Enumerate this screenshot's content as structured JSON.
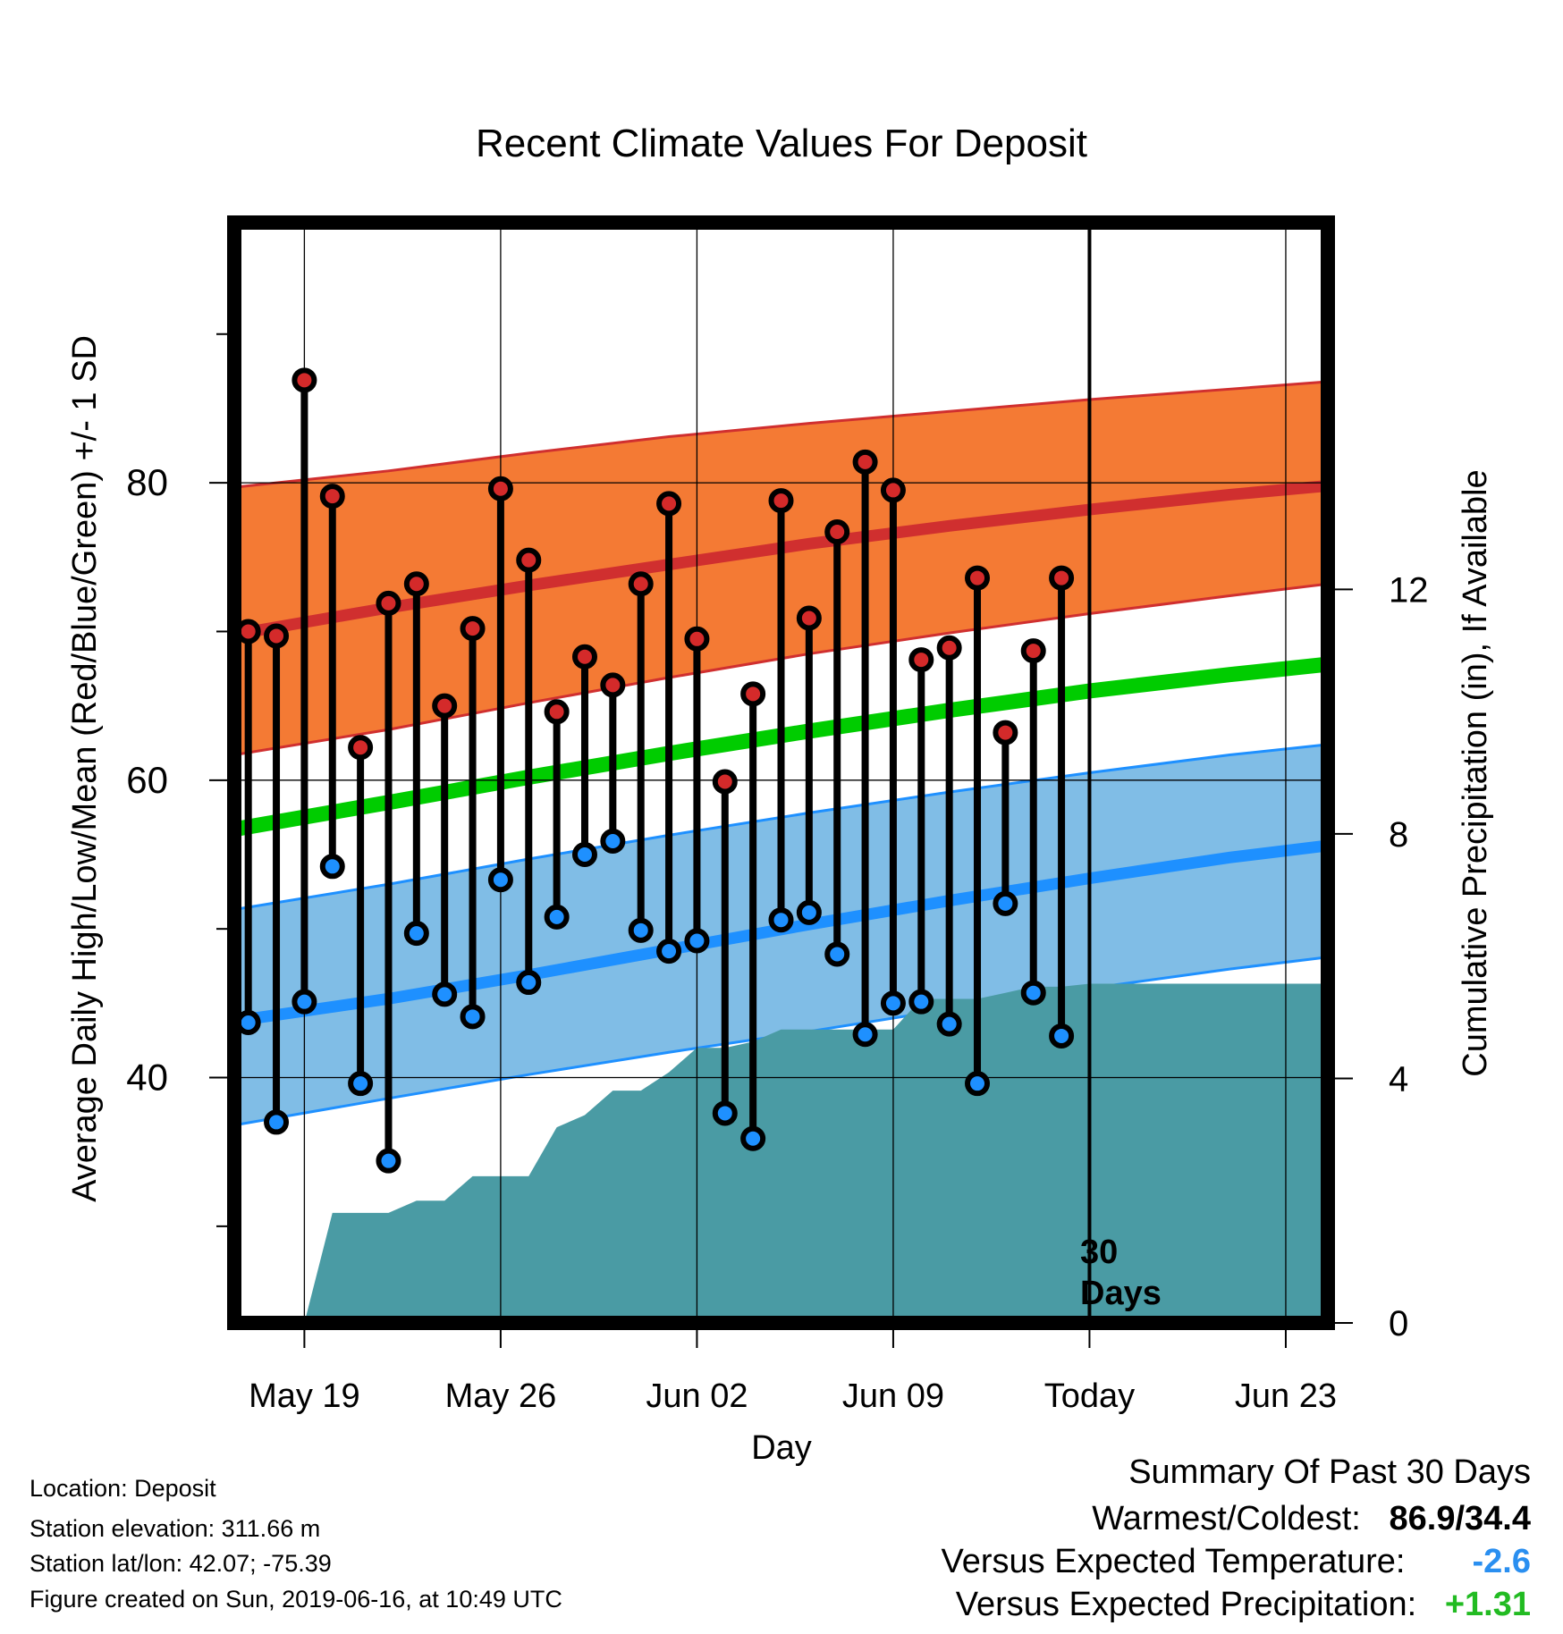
{
  "chart_data": {
    "type": "line",
    "title": "Recent Climate Values For Deposit",
    "xlabel": "Day",
    "ylabel": "Average Daily High/Low/Mean (Red/Blue/Green) +/- 1 SD",
    "y2label": "Cumulative Precipitation (in), If Available",
    "x_tick_labels": [
      "May 19",
      "May 26",
      "Jun 02",
      "Jun 09",
      "Today",
      "Jun 23"
    ],
    "x_tick_days": [
      2,
      9,
      16,
      23,
      30,
      37
    ],
    "xlim": [
      -0.5,
      38.5
    ],
    "ylim": [
      23.5,
      97.5
    ],
    "y_ticks": [
      40,
      60,
      80
    ],
    "y_minor_ticks": [
      30,
      50,
      70,
      90
    ],
    "y2lim": [
      0,
      18
    ],
    "y2_ticks": [
      0,
      4,
      8,
      12
    ],
    "today_day": 30,
    "today_label_line1": "30",
    "today_label_line2": "Days",
    "normals": {
      "day": [
        -0.5,
        5,
        10,
        15,
        20,
        25,
        30,
        35,
        38.5
      ],
      "high_mean": [
        69.8,
        71.6,
        73.1,
        74.5,
        75.9,
        77.1,
        78.2,
        79.2,
        79.8
      ],
      "high_upper": [
        79.7,
        80.8,
        82.0,
        83.1,
        84.0,
        84.8,
        85.6,
        86.3,
        86.8
      ],
      "high_lower": [
        61.7,
        63.4,
        65.2,
        66.9,
        68.5,
        69.9,
        71.2,
        72.4,
        73.2
      ],
      "avg_mean": [
        56.7,
        58.5,
        60.2,
        61.8,
        63.3,
        64.7,
        66.0,
        67.1,
        67.8
      ],
      "low_mean": [
        43.8,
        45.3,
        46.9,
        48.6,
        50.3,
        51.9,
        53.4,
        54.8,
        55.6
      ],
      "low_upper": [
        51.3,
        53.0,
        54.7,
        56.3,
        57.8,
        59.2,
        60.5,
        61.7,
        62.4
      ],
      "low_lower": [
        36.8,
        38.6,
        40.2,
        41.7,
        43.1,
        44.6,
        46.0,
        47.3,
        48.1
      ]
    },
    "series": [
      {
        "name": "High",
        "color": "#d42a2a",
        "day": [
          0,
          1,
          2,
          3,
          4,
          5,
          6,
          7,
          8,
          9,
          10,
          11,
          12,
          13,
          14,
          15,
          16,
          17,
          18,
          19,
          20,
          21,
          22,
          23,
          24,
          25,
          26,
          27,
          28,
          29
        ],
        "values": [
          70.0,
          69.7,
          86.9,
          79.1,
          62.2,
          71.9,
          73.2,
          65.0,
          70.2,
          79.6,
          74.8,
          64.6,
          68.3,
          66.4,
          73.2,
          78.6,
          69.5,
          59.9,
          65.8,
          78.8,
          70.9,
          76.7,
          81.4,
          79.5,
          68.1,
          68.9,
          73.6,
          63.2,
          68.7,
          73.6
        ]
      },
      {
        "name": "Low",
        "color": "#1e90ff",
        "day": [
          0,
          1,
          2,
          3,
          4,
          5,
          6,
          7,
          8,
          9,
          10,
          11,
          12,
          13,
          14,
          15,
          16,
          17,
          18,
          19,
          20,
          21,
          22,
          23,
          24,
          25,
          26,
          27,
          28,
          29
        ],
        "values": [
          43.7,
          37.0,
          45.1,
          54.2,
          39.6,
          34.4,
          49.7,
          45.6,
          44.1,
          53.3,
          46.4,
          50.8,
          55.0,
          55.9,
          49.9,
          48.5,
          49.2,
          37.6,
          35.9,
          50.6,
          51.1,
          48.3,
          42.9,
          45.0,
          45.1,
          43.6,
          39.6,
          51.7,
          45.7,
          42.8
        ]
      }
    ],
    "precipitation": {
      "name": "Cumulative Precipitation",
      "color": "#4a9ba4",
      "day": [
        2,
        3,
        4,
        5,
        6,
        7,
        8,
        9,
        10,
        11,
        12,
        13,
        14,
        15,
        16,
        17,
        18,
        19,
        20,
        21,
        22,
        23,
        24,
        25,
        26,
        27,
        28,
        29,
        30,
        38.5
      ],
      "values": [
        0,
        1.8,
        1.8,
        1.8,
        2.0,
        2.0,
        2.4,
        2.4,
        2.4,
        3.2,
        3.4,
        3.8,
        3.8,
        4.1,
        4.5,
        4.5,
        4.6,
        4.8,
        4.8,
        4.8,
        4.8,
        4.8,
        5.3,
        5.3,
        5.3,
        5.4,
        5.5,
        5.5,
        5.55,
        5.55
      ]
    },
    "colors": {
      "high_band": "#f47a34",
      "high_line": "#d02f2f",
      "mean_line": "#00cc00",
      "low_band": "#80bde6",
      "low_line": "#1e90ff",
      "frame": "#000000"
    }
  },
  "info": {
    "location": "Location: Deposit",
    "elevation": "Station elevation: 311.66 m",
    "latlon": "Station lat/lon: 42.07; -75.39",
    "created": "Figure created on Sun, 2019-06-16, at 10:49 UTC"
  },
  "summary": {
    "title": "Summary Of Past 30 Days",
    "warmest_label": "Warmest/Coldest:",
    "warmest_value": "86.9/34.4",
    "temp_label": "Versus Expected Temperature:",
    "temp_value": "-2.6",
    "temp_color": "#2a8ff0",
    "precip_label": "Versus Expected Precipitation:",
    "precip_value": "+1.31",
    "precip_color": "#22bb22"
  }
}
